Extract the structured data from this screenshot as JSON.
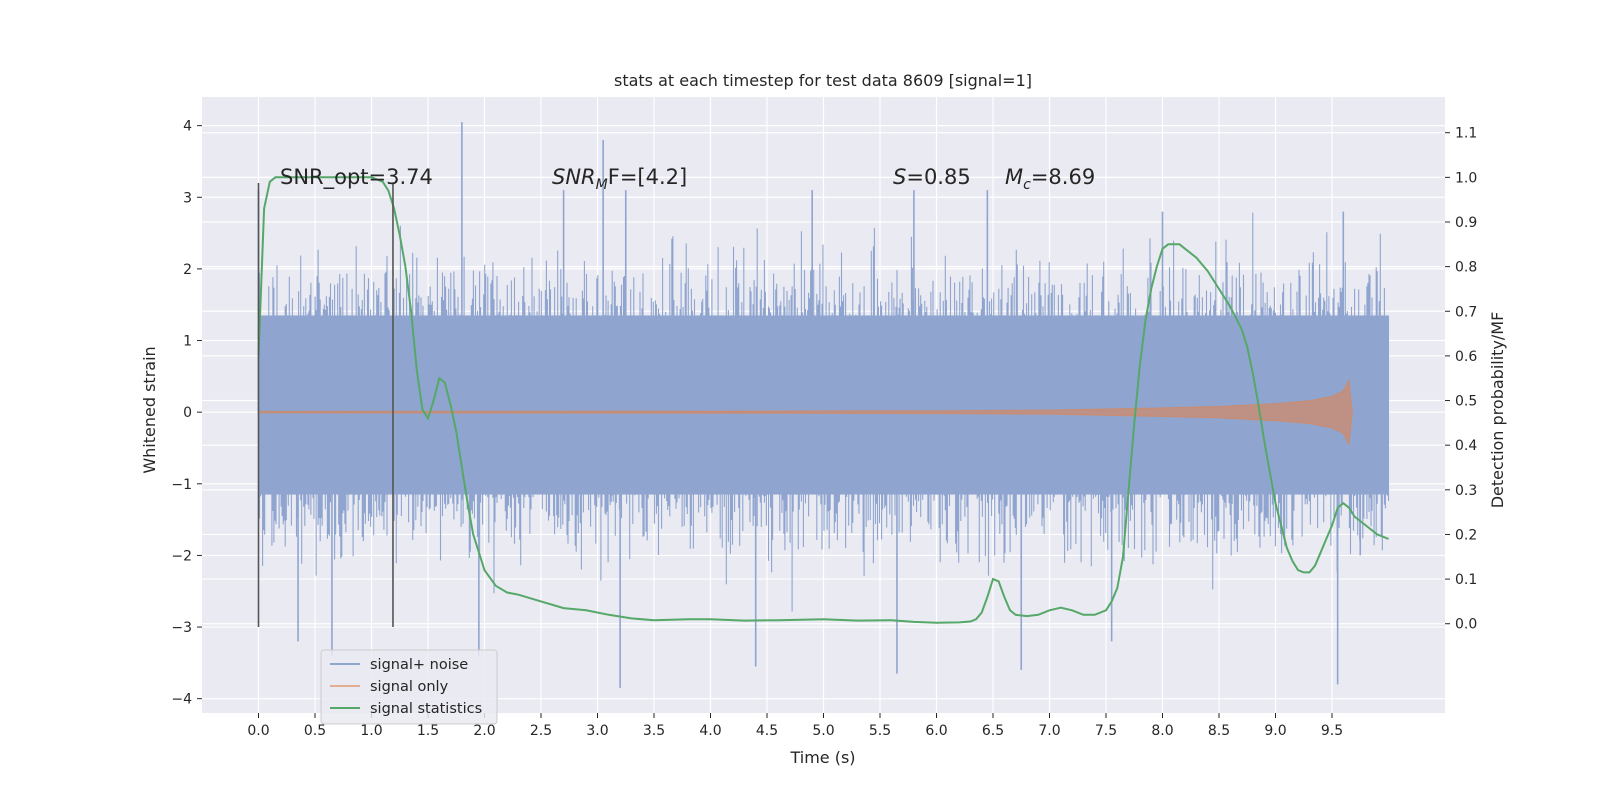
{
  "chart_data": {
    "type": "line",
    "title": "stats at each timestep for test data 8609 [signal=1]",
    "xlabel": "Time (s)",
    "ylabel_left": "Whitened strain",
    "ylabel_right": "Detection probability/MF",
    "xlim": [
      -0.5,
      10.5
    ],
    "ylim_left": [
      -4.2,
      4.4
    ],
    "ylim_right": [
      -0.2,
      1.18
    ],
    "x_ticks": [
      "0.0",
      "0.5",
      "1.0",
      "1.5",
      "2.0",
      "2.5",
      "3.0",
      "3.5",
      "4.0",
      "4.5",
      "5.0",
      "5.5",
      "6.0",
      "6.5",
      "7.0",
      "7.5",
      "8.0",
      "8.5",
      "9.0",
      "9.5"
    ],
    "y_ticks_left": [
      "4",
      "3",
      "2",
      "1",
      "0",
      "−1",
      "−2",
      "−3",
      "−4"
    ],
    "y_ticks_right": [
      "1.1",
      "1.0",
      "0.9",
      "0.8",
      "0.7",
      "0.6",
      "0.5",
      "0.4",
      "0.3",
      "0.2",
      "0.1",
      "0.0"
    ],
    "grid": true,
    "legend_position": "lower-left",
    "colors": {
      "background": "#eaeaf2",
      "grid": "#ffffff",
      "signal_noise": "#8fa5cf",
      "signal_only": "#dd8452",
      "signal_statistics": "#55a868",
      "marker_lines": "#555555"
    },
    "annotations": {
      "snr_opt": "SNR_opt=3.74",
      "snr_mf_main": "SNR",
      "snr_mf_sub": "M",
      "snr_mf_rest": "F=[4.2]",
      "s_label": "S",
      "s_value": "=0.85",
      "mc_label": "M",
      "mc_sub": "c",
      "mc_value": "=8.69"
    },
    "vertical_markers": [
      0.0,
      1.19
    ],
    "series": [
      {
        "name": "signal+ noise",
        "axis": "left",
        "description_range": [
          -2.2,
          2.2
        ],
        "x_range": [
          0.0,
          10.0
        ],
        "band": [
          -1.15,
          1.35
        ],
        "peaks_up": [
          [
            0.0,
            3.1
          ],
          [
            1.8,
            4.05
          ],
          [
            2.7,
            3.1
          ],
          [
            3.05,
            3.8
          ],
          [
            3.25,
            3.1
          ],
          [
            4.9,
            3.1
          ],
          [
            5.8,
            3.1
          ],
          [
            6.45,
            3.1
          ],
          [
            8.0,
            2.8
          ],
          [
            9.6,
            2.8
          ]
        ],
        "peaks_down": [
          [
            0.35,
            -3.2
          ],
          [
            0.65,
            -3.4
          ],
          [
            1.95,
            -3.4
          ],
          [
            3.2,
            -3.85
          ],
          [
            4.4,
            -3.55
          ],
          [
            5.65,
            -3.65
          ],
          [
            6.75,
            -3.6
          ],
          [
            7.55,
            -3.2
          ],
          [
            9.55,
            -3.8
          ],
          [
            9.75,
            -2.0
          ]
        ]
      },
      {
        "name": "signal only",
        "axis": "left",
        "x": [
          0.0,
          2.0,
          4.0,
          6.0,
          7.0,
          8.0,
          8.5,
          9.0,
          9.3,
          9.5,
          9.6,
          9.65,
          9.68
        ],
        "amplitude": [
          0.01,
          0.012,
          0.015,
          0.02,
          0.03,
          0.06,
          0.08,
          0.12,
          0.16,
          0.22,
          0.3,
          0.45,
          0.0
        ]
      },
      {
        "name": "signal statistics",
        "axis": "right",
        "x": [
          0.0,
          0.05,
          0.1,
          0.15,
          0.2,
          0.3,
          0.4,
          0.5,
          0.6,
          0.7,
          0.8,
          0.9,
          1.0,
          1.1,
          1.15,
          1.2,
          1.25,
          1.3,
          1.35,
          1.4,
          1.45,
          1.5,
          1.55,
          1.6,
          1.65,
          1.7,
          1.75,
          1.8,
          1.85,
          1.9,
          1.95,
          2.0,
          2.1,
          2.2,
          2.3,
          2.5,
          2.7,
          2.9,
          3.1,
          3.3,
          3.5,
          3.8,
          4.0,
          4.3,
          4.6,
          5.0,
          5.3,
          5.6,
          5.8,
          6.0,
          6.2,
          6.3,
          6.35,
          6.4,
          6.45,
          6.5,
          6.55,
          6.6,
          6.65,
          6.7,
          6.8,
          6.9,
          7.0,
          7.1,
          7.2,
          7.3,
          7.4,
          7.5,
          7.55,
          7.6,
          7.65,
          7.7,
          7.75,
          7.8,
          7.85,
          7.9,
          7.95,
          8.0,
          8.05,
          8.1,
          8.15,
          8.2,
          8.3,
          8.4,
          8.5,
          8.6,
          8.7,
          8.75,
          8.8,
          8.85,
          8.9,
          8.95,
          9.0,
          9.05,
          9.1,
          9.15,
          9.2,
          9.25,
          9.3,
          9.35,
          9.4,
          9.45,
          9.5,
          9.55,
          9.6,
          9.65,
          9.7,
          9.8,
          9.9,
          10.0
        ],
        "y": [
          0.6,
          0.93,
          0.99,
          1.0,
          1.0,
          1.0,
          1.0,
          1.0,
          1.0,
          1.0,
          1.0,
          1.0,
          1.0,
          0.99,
          0.97,
          0.93,
          0.87,
          0.8,
          0.7,
          0.57,
          0.48,
          0.46,
          0.5,
          0.55,
          0.54,
          0.49,
          0.43,
          0.35,
          0.27,
          0.2,
          0.16,
          0.12,
          0.085,
          0.07,
          0.065,
          0.05,
          0.035,
          0.03,
          0.02,
          0.012,
          0.008,
          0.01,
          0.01,
          0.007,
          0.008,
          0.01,
          0.007,
          0.008,
          0.004,
          0.002,
          0.003,
          0.005,
          0.01,
          0.025,
          0.06,
          0.1,
          0.095,
          0.06,
          0.03,
          0.02,
          0.017,
          0.02,
          0.03,
          0.036,
          0.03,
          0.02,
          0.02,
          0.03,
          0.05,
          0.08,
          0.15,
          0.3,
          0.45,
          0.58,
          0.68,
          0.75,
          0.8,
          0.84,
          0.85,
          0.85,
          0.85,
          0.84,
          0.82,
          0.79,
          0.75,
          0.71,
          0.66,
          0.62,
          0.56,
          0.49,
          0.41,
          0.34,
          0.27,
          0.22,
          0.17,
          0.14,
          0.12,
          0.115,
          0.115,
          0.13,
          0.16,
          0.19,
          0.22,
          0.26,
          0.27,
          0.26,
          0.24,
          0.22,
          0.2,
          0.19
        ]
      }
    ],
    "legend": [
      "signal+ noise",
      "signal only",
      "signal statistics"
    ]
  }
}
